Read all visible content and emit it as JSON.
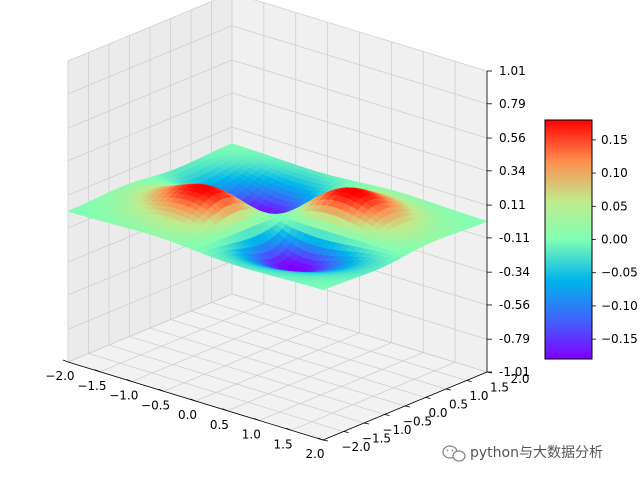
{
  "chart_data": {
    "type": "surface",
    "title": "",
    "function": "z = x*y*exp(-x^2 - y^2)",
    "x_range": [
      -2.0,
      2.0
    ],
    "y_range": [
      -2.0,
      2.0
    ],
    "z_range": [
      -1.01,
      1.01
    ],
    "grid": true,
    "colormap": "rainbow",
    "x_ticks": [
      "−2.0",
      "−1.5",
      "−1.0",
      "−0.5",
      "0.0",
      "0.5",
      "1.0",
      "1.5",
      "2.0"
    ],
    "y_ticks": [
      "−2.0",
      "−1.5",
      "−1.0",
      "−0.5",
      "0.0",
      "0.5",
      "1.0",
      "1.5",
      "2.0"
    ],
    "z_ticks": [
      "-1.01",
      "-0.79",
      "-0.56",
      "-0.34",
      "-0.11",
      "0.11",
      "0.34",
      "0.56",
      "0.79",
      "1.01"
    ],
    "colorbar": {
      "min": -0.18,
      "max": 0.18,
      "ticks": [
        {
          "value": 0.15,
          "label": "0.15"
        },
        {
          "value": 0.1,
          "label": "0.10"
        },
        {
          "value": 0.05,
          "label": "0.05"
        },
        {
          "value": 0.0,
          "label": "0.00"
        },
        {
          "value": -0.05,
          "label": "−0.05"
        },
        {
          "value": -0.1,
          "label": "−0.10"
        },
        {
          "value": -0.15,
          "label": "−0.15"
        }
      ]
    }
  },
  "watermark": {
    "icon": "wechat-icon",
    "text": "python与大数据分析"
  }
}
